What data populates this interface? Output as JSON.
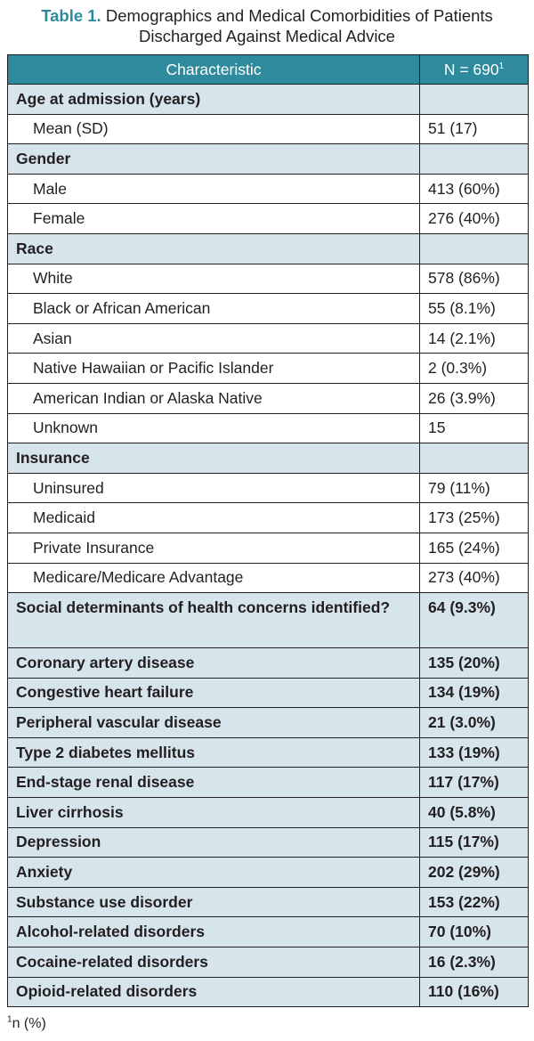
{
  "caption": {
    "label": "Table 1.",
    "line1": "Demographics and Medical Comorbidities of Patients",
    "line2": "Discharged Against Medical Advice"
  },
  "table": {
    "header": {
      "characteristic": "Characteristic",
      "n": "N = 690",
      "n_sup": "1"
    },
    "rows": [
      {
        "label": "Age at admission (years)",
        "value": "",
        "type": "section"
      },
      {
        "label": "Mean (SD)",
        "value": "51 (17)",
        "type": "sub"
      },
      {
        "label": "Gender",
        "value": "",
        "type": "section"
      },
      {
        "label": "Male",
        "value": "413 (60%)",
        "type": "sub"
      },
      {
        "label": "Female",
        "value": "276 (40%)",
        "type": "sub"
      },
      {
        "label": "Race",
        "value": "",
        "type": "section"
      },
      {
        "label": "White",
        "value": "578 (86%)",
        "type": "sub"
      },
      {
        "label": "Black or African American",
        "value": "55 (8.1%)",
        "type": "sub"
      },
      {
        "label": "Asian",
        "value": "14 (2.1%)",
        "type": "sub"
      },
      {
        "label": "Native Hawaiian or Pacific Islander",
        "value": "2 (0.3%)",
        "type": "sub"
      },
      {
        "label": "American Indian or Alaska Native",
        "value": "26 (3.9%)",
        "type": "sub"
      },
      {
        "label": "Unknown",
        "value": "15",
        "type": "sub"
      },
      {
        "label": "Insurance",
        "value": "",
        "type": "section"
      },
      {
        "label": "Uninsured",
        "value": "79 (11%)",
        "type": "sub"
      },
      {
        "label": "Medicaid",
        "value": "173 (25%)",
        "type": "sub"
      },
      {
        "label": "Private Insurance",
        "value": "165 (24%)",
        "type": "sub"
      },
      {
        "label": "Medicare/Medicare Advantage",
        "value": "273 (40%)",
        "type": "sub"
      },
      {
        "label": "Social determinants of health concerns identified?",
        "value": "64 (9.3%)",
        "type": "section-two"
      },
      {
        "label": "Coronary artery disease",
        "value": "135 (20%)",
        "type": "section"
      },
      {
        "label": "Congestive heart failure",
        "value": "134 (19%)",
        "type": "section"
      },
      {
        "label": "Peripheral vascular disease",
        "value": "21 (3.0%)",
        "type": "section"
      },
      {
        "label": "Type 2 diabetes mellitus",
        "value": "133 (19%)",
        "type": "section"
      },
      {
        "label": "End-stage renal disease",
        "value": "117 (17%)",
        "type": "section"
      },
      {
        "label": "Liver cirrhosis",
        "value": "40 (5.8%)",
        "type": "section"
      },
      {
        "label": "Depression",
        "value": "115 (17%)",
        "type": "section"
      },
      {
        "label": "Anxiety",
        "value": "202 (29%)",
        "type": "section"
      },
      {
        "label": "Substance use disorder",
        "value": "153 (22%)",
        "type": "section"
      },
      {
        "label": "Alcohol-related disorders",
        "value": "70 (10%)",
        "type": "section"
      },
      {
        "label": "Cocaine-related disorders",
        "value": "16 (2.3%)",
        "type": "section"
      },
      {
        "label": "Opioid-related disorders",
        "value": "110 (16%)",
        "type": "section"
      }
    ]
  },
  "footnote": {
    "sup": "1",
    "text": "n (%)"
  },
  "colors": {
    "accent": "#2e8a9c",
    "section_bg": "#d6e4ec",
    "text": "#231f20"
  }
}
